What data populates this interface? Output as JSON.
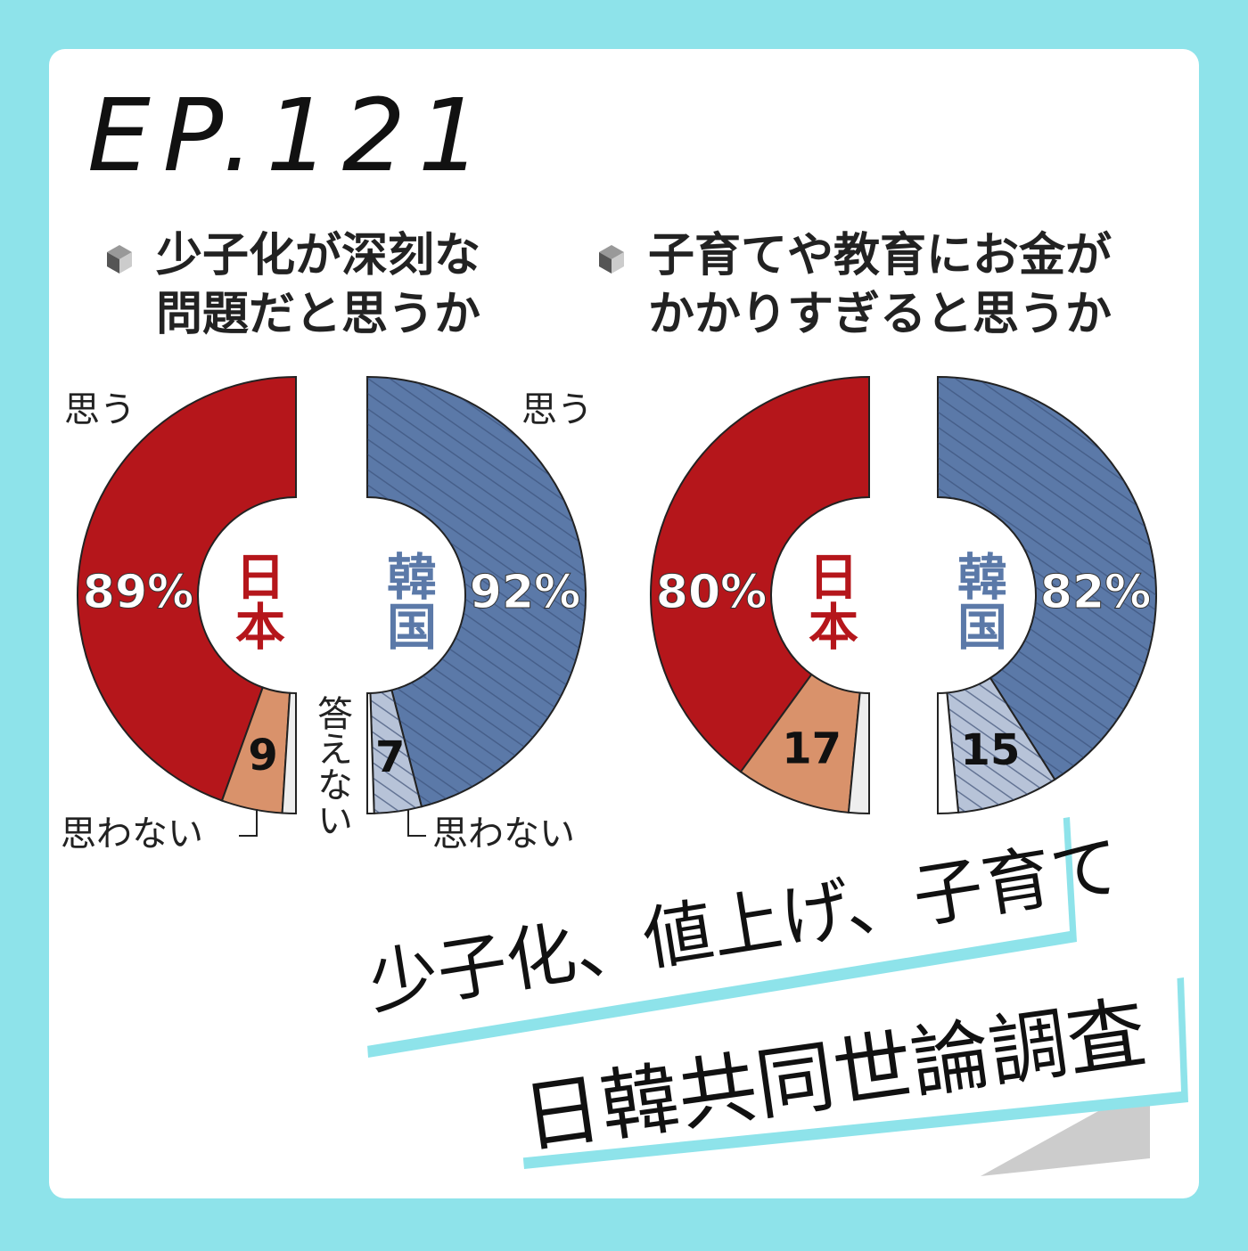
{
  "header": {
    "episode": "EP.121"
  },
  "banner": {
    "lines": [
      "少子化、値上げ、子育て",
      "日韓共同世論調査"
    ]
  },
  "chart_data": [
    {
      "type": "pie",
      "title": [
        "少子化が深刻な",
        "問題だと思うか"
      ],
      "categories": [
        "思う",
        "思わない",
        "答えない"
      ],
      "series": [
        {
          "name": "日本",
          "color": "#b5161b",
          "colors": [
            "#b5161b",
            "#d9926b",
            "#eeeeee"
          ],
          "values": [
            89,
            9,
            2
          ],
          "value_labels": [
            "89%",
            "9",
            null
          ]
        },
        {
          "name": "韓国",
          "color": "#5b79a8",
          "colors": [
            "#5b79a8",
            "#b7c3d8",
            "#ffffff"
          ],
          "values": [
            92,
            7,
            1
          ],
          "value_labels": [
            "92%",
            "7",
            null
          ]
        }
      ]
    },
    {
      "type": "pie",
      "title": [
        "子育てや教育にお金が",
        "かかりすぎると思うか"
      ],
      "series": [
        {
          "name": "日本",
          "color": "#b5161b",
          "colors": [
            "#b5161b",
            "#d9926b",
            "#eeeeee"
          ],
          "values": [
            80,
            17,
            3
          ],
          "value_labels": [
            "80%",
            "17",
            null
          ]
        },
        {
          "name": "韓国",
          "color": "#5b79a8",
          "colors": [
            "#5b79a8",
            "#b7c3d8",
            "#ffffff"
          ],
          "values": [
            82,
            15,
            3
          ],
          "value_labels": [
            "82%",
            "15",
            null
          ]
        }
      ]
    }
  ]
}
